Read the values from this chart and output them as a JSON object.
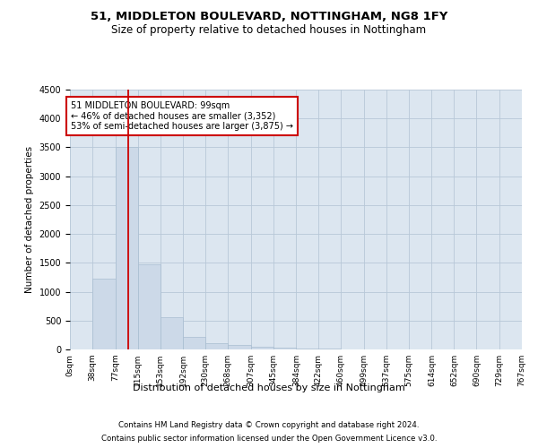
{
  "title_line1": "51, MIDDLETON BOULEVARD, NOTTINGHAM, NG8 1FY",
  "title_line2": "Size of property relative to detached houses in Nottingham",
  "xlabel": "Distribution of detached houses by size in Nottingham",
  "ylabel": "Number of detached properties",
  "footnote1": "Contains HM Land Registry data © Crown copyright and database right 2024.",
  "footnote2": "Contains public sector information licensed under the Open Government Licence v3.0.",
  "annotation_line1": "51 MIDDLETON BOULEVARD: 99sqm",
  "annotation_line2": "← 46% of detached houses are smaller (3,352)",
  "annotation_line3": "53% of semi-detached houses are larger (3,875) →",
  "property_sqm": 99,
  "bin_edges": [
    0,
    38,
    77,
    115,
    153,
    192,
    230,
    268,
    307,
    345,
    384,
    422,
    460,
    499,
    537,
    575,
    614,
    652,
    690,
    729,
    767
  ],
  "bin_counts": [
    5,
    1230,
    3500,
    1470,
    560,
    220,
    110,
    75,
    50,
    30,
    15,
    8,
    4,
    0,
    0,
    0,
    2,
    0,
    0,
    0
  ],
  "bar_color": "#ccd9e8",
  "bar_edge_color": "#a8bdd0",
  "red_line_color": "#cc0000",
  "annotation_box_facecolor": "#ffffff",
  "annotation_box_edgecolor": "#cc0000",
  "plot_bg_color": "#dce6f0",
  "background_color": "#ffffff",
  "grid_color": "#b8c8d8",
  "ylim": [
    0,
    4500
  ],
  "yticks": [
    0,
    500,
    1000,
    1500,
    2000,
    2500,
    3000,
    3500,
    4000,
    4500
  ]
}
